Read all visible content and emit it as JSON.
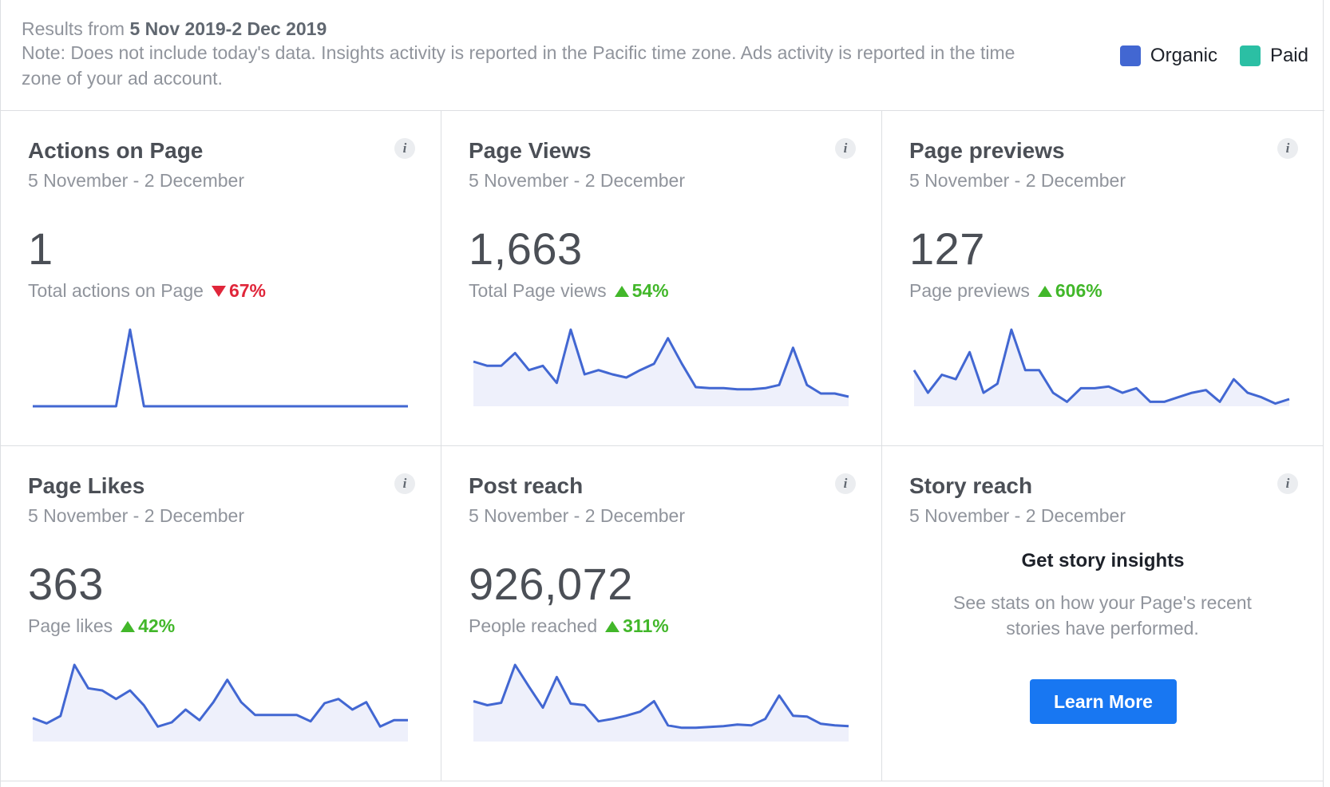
{
  "header": {
    "results_prefix": "Results from",
    "results_range": "5 Nov 2019-2 Dec 2019",
    "note": "Note: Does not include today's data. Insights activity is reported in the Pacific time zone. Ads activity is reported in the time zone of your ad account."
  },
  "legend": [
    {
      "label": "Organic",
      "color": "#4267d2"
    },
    {
      "label": "Paid",
      "color": "#2bbfa4"
    }
  ],
  "colors": {
    "line": "#4267d2",
    "fill": "#eef0fb",
    "up": "#42b72a",
    "down": "#e0263a",
    "button": "#1877f2"
  },
  "cards": [
    {
      "title": "Actions on Page",
      "date": "5 November - 2 December",
      "value": "1",
      "sub_label": "Total actions on Page",
      "delta": "67%",
      "direction": "down",
      "spark": [
        0,
        0,
        0,
        0,
        0,
        0,
        0,
        1,
        0,
        0,
        0,
        0,
        0,
        0,
        0,
        0,
        0,
        0,
        0,
        0,
        0,
        0,
        0,
        0,
        0,
        0,
        0,
        0
      ],
      "filled": false
    },
    {
      "title": "Page Views",
      "date": "5 November - 2 December",
      "value": "1,663",
      "sub_label": "Total Page views",
      "delta": "54%",
      "direction": "up",
      "spark": [
        42,
        38,
        38,
        50,
        34,
        38,
        22,
        72,
        30,
        34,
        30,
        27,
        34,
        40,
        64,
        40,
        18,
        17,
        17,
        16,
        16,
        17,
        20,
        55,
        20,
        12,
        12,
        9
      ],
      "filled": true
    },
    {
      "title": "Page previews",
      "date": "5 November - 2 December",
      "value": "127",
      "sub_label": "Page previews",
      "delta": "606%",
      "direction": "up",
      "spark": [
        40,
        15,
        35,
        30,
        60,
        15,
        25,
        85,
        40,
        40,
        15,
        5,
        20,
        20,
        22,
        15,
        20,
        5,
        5,
        10,
        15,
        18,
        5,
        30,
        15,
        10,
        3,
        8
      ],
      "filled": true
    },
    {
      "title": "Page Likes",
      "date": "5 November - 2 December",
      "value": "363",
      "sub_label": "Page likes",
      "delta": "42%",
      "direction": "up",
      "spark": [
        22,
        17,
        24,
        72,
        50,
        48,
        40,
        48,
        34,
        14,
        18,
        30,
        20,
        37,
        58,
        37,
        25,
        25,
        25,
        25,
        19,
        36,
        40,
        30,
        37,
        14,
        20,
        20
      ],
      "filled": true
    },
    {
      "title": "Post reach",
      "date": "5 November - 2 December",
      "value": "926,072",
      "sub_label": "People reached",
      "delta": "311%",
      "direction": "up",
      "spark": [
        50,
        45,
        48,
        95,
        68,
        42,
        80,
        47,
        45,
        25,
        28,
        32,
        37,
        50,
        20,
        17,
        17,
        18,
        19,
        21,
        20,
        28,
        57,
        32,
        31,
        22,
        20,
        19
      ],
      "filled": true
    }
  ],
  "story": {
    "title": "Story reach",
    "date": "5 November - 2 December",
    "heading": "Get story insights",
    "description": "See stats on how your Page's recent stories have performed.",
    "button_label": "Learn More"
  }
}
